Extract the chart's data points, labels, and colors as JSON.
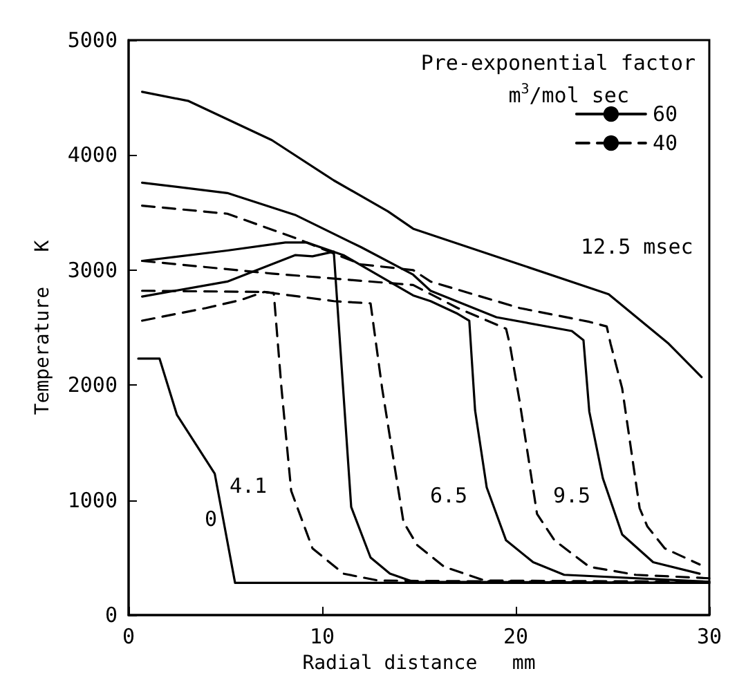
{
  "chart_data": {
    "type": "line",
    "xlabel": "Radial distance   mm",
    "ylabel": "Temperature   K",
    "legend_title": "Pre-exponential factor\nm$^{3}$/mol sec",
    "legend": "top right",
    "grid": false,
    "marker": "none",
    "xlim": [
      0,
      30
    ],
    "xticks": [
      0,
      10,
      20,
      30
    ],
    "ylim": [
      0,
      5000
    ],
    "yticks": [
      0,
      1000,
      2000,
      3000,
      4000,
      5000
    ],
    "annotations": [
      "12.5 msec",
      "4.1",
      "6.5",
      "9.5",
      "0"
    ],
    "series": [
      {
        "name": "60",
        "color": "#000000",
        "line_style": "solid",
        "x": [
          0.7,
          3.1,
          7.4,
          10.6,
          13.4,
          14.7,
          20.2,
          24.8,
          27.9,
          29.6
        ],
        "values": [
          4550,
          4470,
          4130,
          3780,
          3510,
          3360,
          3050,
          2790,
          2360,
          2070
        ]
      },
      {
        "name": "40",
        "color": "#000000",
        "line_style": "dashed",
        "x": [
          0.7,
          5.1,
          8.6,
          12.0,
          14.7,
          15.6,
          20.2,
          23.8,
          24.7,
          24.9,
          25.5,
          26.4,
          26.8,
          27.7,
          29.5
        ],
        "values": [
          3560,
          3490,
          3280,
          3050,
          3000,
          2900,
          2670,
          2550,
          2510,
          2360,
          1970,
          930,
          770,
          580,
          440
        ]
      },
      {
        "color": "#000000",
        "line_style": "solid",
        "x": [
          0.5,
          1.6,
          2.5,
          4.45,
          5.5,
          30
        ],
        "values": [
          2230,
          2230,
          1740,
          1230,
          280,
          280
        ]
      },
      {
        "color": "#000000",
        "line_style": "solid",
        "x": [
          0.7,
          5.1,
          8.6,
          9.5,
          10.6,
          11.5,
          12.5,
          13.5,
          14.7,
          30
        ],
        "values": [
          2770,
          2900,
          3130,
          3120,
          3160,
          940,
          500,
          360,
          290,
          280
        ]
      },
      {
        "color": "#000000",
        "line_style": "dashed",
        "x": [
          0.7,
          4.0,
          5.8,
          7.0,
          7.5,
          7.9,
          8.4,
          9.5,
          11.1,
          12.9,
          30
        ],
        "values": [
          2560,
          2670,
          2740,
          2810,
          2800,
          1970,
          1080,
          580,
          360,
          300,
          280
        ]
      },
      {
        "color": "#000000",
        "line_style": "solid",
        "x": [
          0.7,
          5.1,
          8.1,
          9.2,
          11.1,
          14.7,
          15.6,
          17.0,
          17.6,
          17.9,
          18.5,
          19.5,
          20.9,
          22.5,
          30
        ],
        "values": [
          3080,
          3170,
          3240,
          3240,
          3130,
          2780,
          2730,
          2620,
          2560,
          1780,
          1110,
          650,
          460,
          350,
          290
        ]
      },
      {
        "color": "#000000",
        "line_style": "dashed",
        "x": [
          0.7,
          7.0,
          10.6,
          12.5,
          13.1,
          14.2,
          14.9,
          16.3,
          18.4,
          30
        ],
        "values": [
          2820,
          2810,
          2730,
          2710,
          1970,
          810,
          610,
          420,
          300,
          290
        ]
      },
      {
        "color": "#000000",
        "line_style": "dashed",
        "x": [
          0.7,
          7.4,
          14.7,
          17.0,
          19.5,
          19.7,
          20.2,
          21.1,
          22.0,
          23.8,
          26.2,
          30
        ],
        "values": [
          3080,
          2970,
          2870,
          2670,
          2490,
          2350,
          1860,
          880,
          650,
          420,
          350,
          320
        ]
      },
      {
        "color": "#000000",
        "line_style": "solid",
        "x": [
          0.7,
          5.1,
          8.6,
          12.0,
          14.7,
          15.6,
          19.0,
          22.9,
          23.5,
          23.8,
          24.5,
          25.5,
          27.1,
          29.5
        ],
        "values": [
          3760,
          3670,
          3480,
          3200,
          2960,
          2820,
          2590,
          2470,
          2390,
          1770,
          1190,
          700,
          460,
          360
        ]
      }
    ]
  }
}
